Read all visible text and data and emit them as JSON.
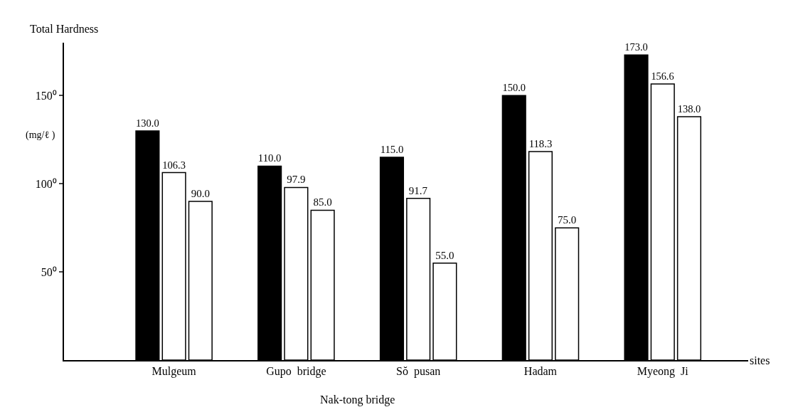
{
  "chart_data": {
    "type": "bar",
    "ylabel": "Total Hardness",
    "xlabel": "sites",
    "categories": [
      "Mulgeum",
      "Gupo  bridge",
      "Sŏ  pusan",
      "Hadam",
      "Myeong  Ji"
    ],
    "series": [
      {
        "color": "#000000",
        "values": [
          130.0,
          110.0,
          115.0,
          150.0,
          173.0
        ],
        "value_labels": [
          "130.0",
          "110.0",
          "115.0",
          "150.0",
          "173.0"
        ]
      },
      {
        "color": "#ffffff",
        "values": [
          106.3,
          97.9,
          91.7,
          118.3,
          156.6
        ],
        "value_labels": [
          "106.3",
          "97.9",
          "91.7",
          "118.3",
          "156.6"
        ]
      },
      {
        "color": "#ffffff",
        "values": [
          90.0,
          85.0,
          55.0,
          75.0,
          138.0
        ],
        "value_labels": [
          "90.0",
          "85.0",
          "55.0",
          "75.0",
          "138.0"
        ]
      }
    ],
    "ylim": [
      0,
      180
    ],
    "yticks": [
      {
        "value": 50,
        "label": "50⁰"
      },
      {
        "value": 100,
        "label": "100⁰"
      },
      {
        "value": 150,
        "label": "150⁰"
      }
    ],
    "annotations": [
      "(mg/ℓ )",
      "Nak-tong bridge"
    ]
  }
}
